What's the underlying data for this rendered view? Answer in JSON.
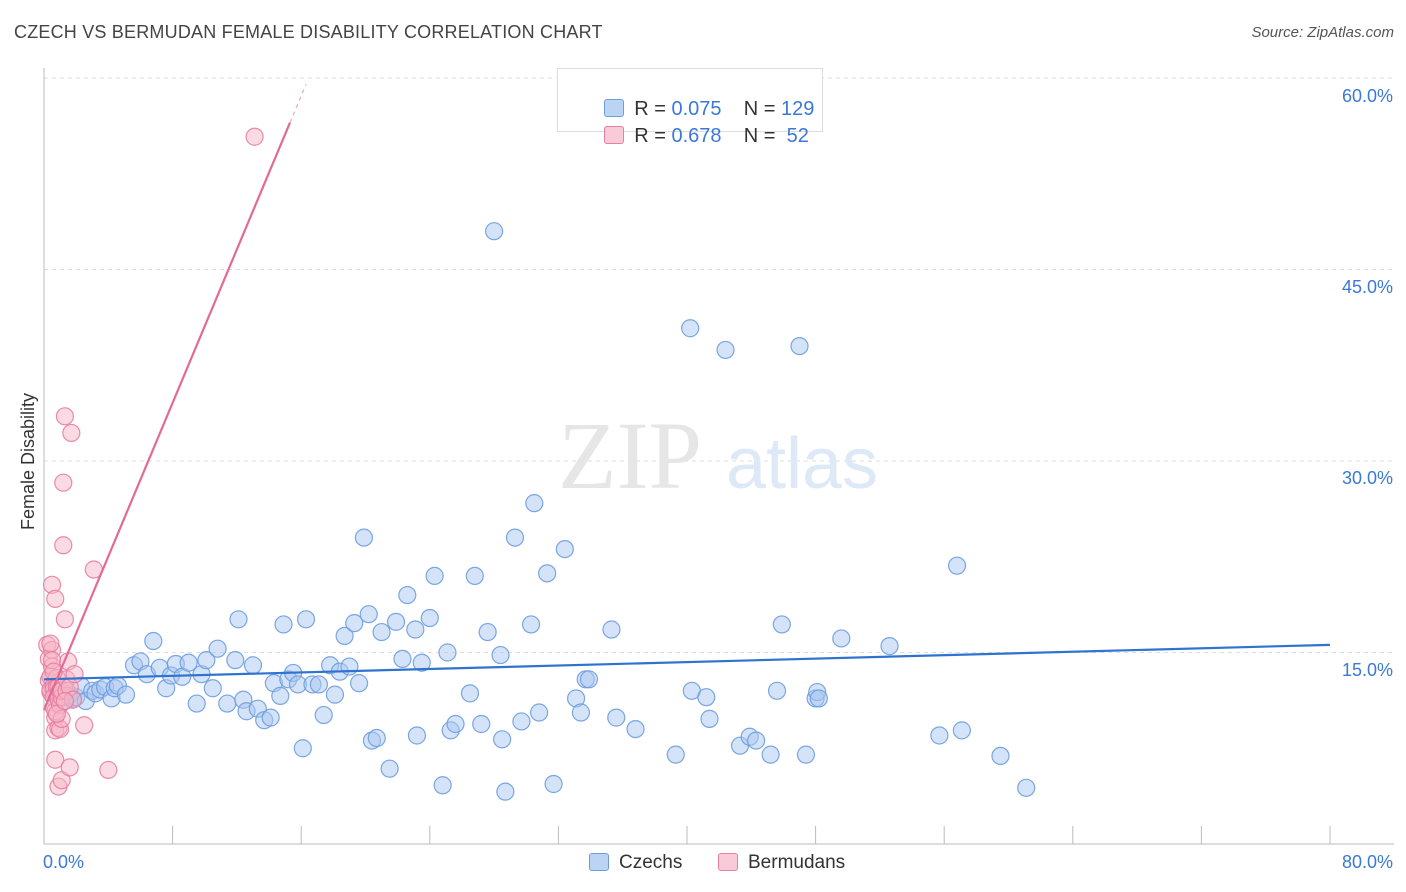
{
  "header": {
    "title": "CZECH VS BERMUDAN FEMALE DISABILITY CORRELATION CHART",
    "source": "Source: ZipAtlas.com"
  },
  "watermark": {
    "zip": "ZIP",
    "atlas": "atlas"
  },
  "legend": {
    "rows": [
      {
        "r_label": "R = ",
        "r_value": "0.075",
        "n_label": "N = ",
        "n_value": "129"
      },
      {
        "r_label": "R = ",
        "r_value": "0.678",
        "n_label": "N = ",
        "n_value": " 52"
      }
    ]
  },
  "bottom_legend": {
    "czechs": "Czechs",
    "bermudans": "Bermudans"
  },
  "colors": {
    "czech_fill": "#a9c8f0",
    "czech_stroke": "#6d9de0",
    "czech_line": "#2f73d0",
    "bermudan_fill": "#f6b6c8",
    "bermudan_stroke": "#e87fa0",
    "bermudan_line": "#e26b95",
    "tick_label": "#3b78d8"
  },
  "chart_data": {
    "type": "scatter",
    "title": "CZECH VS BERMUDAN FEMALE DISABILITY CORRELATION CHART",
    "xlabel": "",
    "ylabel": "Female Disability",
    "xlim": [
      0,
      80
    ],
    "ylim": [
      0,
      60
    ],
    "x_tick_labels": [
      "0.0%",
      "80.0%"
    ],
    "y_ticks": [
      15,
      30,
      45,
      60
    ],
    "y_tick_labels": [
      "15.0%",
      "30.0%",
      "45.0%",
      "60.0%"
    ],
    "grid": "horizontal dashed",
    "series": [
      {
        "name": "Czechs",
        "R": 0.075,
        "N": 129,
        "trend": {
          "x": [
            0.0,
            80.0
          ],
          "y": [
            12.9,
            15.6
          ]
        },
        "points": [
          [
            0.6,
            12.3
          ],
          [
            0.8,
            11.5
          ],
          [
            1.0,
            12.0
          ],
          [
            1.2,
            11.2
          ],
          [
            1.5,
            11.6
          ],
          [
            1.8,
            11.4
          ],
          [
            2.0,
            11.5
          ],
          [
            2.3,
            12.4
          ],
          [
            2.6,
            11.2
          ],
          [
            3.0,
            12.0
          ],
          [
            3.2,
            11.8
          ],
          [
            3.5,
            12.1
          ],
          [
            3.8,
            12.3
          ],
          [
            4.2,
            11.4
          ],
          [
            4.4,
            12.2
          ],
          [
            4.6,
            12.4
          ],
          [
            5.1,
            11.7
          ],
          [
            5.6,
            14.0
          ],
          [
            6.0,
            14.3
          ],
          [
            6.4,
            13.3
          ],
          [
            6.8,
            15.9
          ],
          [
            7.2,
            13.8
          ],
          [
            7.6,
            12.2
          ],
          [
            7.9,
            13.2
          ],
          [
            8.2,
            14.1
          ],
          [
            8.6,
            13.1
          ],
          [
            9.0,
            14.2
          ],
          [
            9.5,
            11.0
          ],
          [
            9.8,
            13.3
          ],
          [
            10.1,
            14.4
          ],
          [
            10.5,
            12.2
          ],
          [
            10.8,
            15.3
          ],
          [
            11.4,
            11.0
          ],
          [
            11.9,
            14.4
          ],
          [
            12.1,
            17.6
          ],
          [
            12.4,
            11.3
          ],
          [
            12.6,
            10.4
          ],
          [
            13.0,
            14.0
          ],
          [
            13.3,
            10.6
          ],
          [
            13.7,
            9.7
          ],
          [
            14.1,
            9.9
          ],
          [
            14.3,
            12.6
          ],
          [
            14.7,
            11.6
          ],
          [
            14.9,
            17.2
          ],
          [
            15.2,
            12.9
          ],
          [
            15.5,
            13.4
          ],
          [
            15.8,
            12.5
          ],
          [
            16.1,
            7.5
          ],
          [
            16.3,
            17.6
          ],
          [
            16.7,
            12.5
          ],
          [
            17.1,
            12.5
          ],
          [
            17.4,
            10.1
          ],
          [
            17.8,
            14.0
          ],
          [
            18.1,
            11.7
          ],
          [
            18.4,
            13.5
          ],
          [
            18.7,
            16.3
          ],
          [
            19.0,
            13.9
          ],
          [
            19.3,
            17.3
          ],
          [
            19.6,
            12.6
          ],
          [
            19.9,
            24.0
          ],
          [
            20.2,
            18.0
          ],
          [
            20.4,
            8.1
          ],
          [
            20.7,
            8.3
          ],
          [
            21.0,
            16.6
          ],
          [
            21.5,
            5.9
          ],
          [
            21.9,
            17.4
          ],
          [
            22.3,
            14.5
          ],
          [
            22.6,
            19.5
          ],
          [
            23.1,
            16.8
          ],
          [
            23.2,
            8.5
          ],
          [
            23.5,
            14.2
          ],
          [
            24.0,
            17.7
          ],
          [
            24.3,
            21.0
          ],
          [
            24.8,
            4.6
          ],
          [
            25.1,
            15.0
          ],
          [
            25.3,
            8.9
          ],
          [
            25.6,
            9.4
          ],
          [
            26.5,
            11.8
          ],
          [
            26.8,
            21.0
          ],
          [
            27.2,
            9.4
          ],
          [
            27.6,
            16.6
          ],
          [
            28.0,
            48.0
          ],
          [
            28.4,
            14.8
          ],
          [
            28.5,
            8.2
          ],
          [
            28.7,
            4.1
          ],
          [
            29.3,
            24.0
          ],
          [
            29.7,
            9.6
          ],
          [
            30.3,
            17.2
          ],
          [
            30.5,
            26.7
          ],
          [
            30.8,
            10.3
          ],
          [
            31.3,
            21.2
          ],
          [
            31.7,
            4.7
          ],
          [
            32.4,
            23.1
          ],
          [
            33.1,
            11.4
          ],
          [
            33.4,
            10.3
          ],
          [
            33.7,
            12.9
          ],
          [
            33.9,
            12.9
          ],
          [
            35.3,
            16.8
          ],
          [
            35.6,
            9.9
          ],
          [
            36.8,
            9.0
          ],
          [
            39.3,
            7.0
          ],
          [
            40.2,
            40.4
          ],
          [
            40.3,
            12.0
          ],
          [
            41.2,
            11.5
          ],
          [
            41.4,
            9.8
          ],
          [
            42.4,
            38.7
          ],
          [
            43.3,
            7.7
          ],
          [
            43.9,
            8.4
          ],
          [
            44.3,
            8.1
          ],
          [
            45.2,
            7.0
          ],
          [
            45.6,
            12.0
          ],
          [
            45.9,
            17.2
          ],
          [
            47.0,
            39.0
          ],
          [
            47.4,
            7.0
          ],
          [
            48.0,
            11.4
          ],
          [
            48.1,
            11.9
          ],
          [
            48.2,
            11.4
          ],
          [
            49.6,
            16.1
          ],
          [
            52.6,
            15.5
          ],
          [
            55.7,
            8.5
          ],
          [
            56.8,
            21.8
          ],
          [
            57.1,
            8.9
          ],
          [
            59.5,
            6.9
          ],
          [
            61.1,
            4.4
          ]
        ]
      },
      {
        "name": "Bermudans",
        "R": 0.678,
        "N": 52,
        "trend": {
          "x": [
            0.0,
            15.3
          ],
          "y": [
            10.5,
            56.5
          ]
        },
        "trend_dashed": {
          "x": [
            15.3,
            16.3
          ],
          "y": [
            56.5,
            59.5
          ]
        },
        "points": [
          [
            0.2,
            15.6
          ],
          [
            0.3,
            14.5
          ],
          [
            0.3,
            12.8
          ],
          [
            0.4,
            11.9
          ],
          [
            0.4,
            13.1
          ],
          [
            0.4,
            12.1
          ],
          [
            0.5,
            20.3
          ],
          [
            0.5,
            15.2
          ],
          [
            0.5,
            13.9
          ],
          [
            0.6,
            12.4
          ],
          [
            0.6,
            12.1
          ],
          [
            0.6,
            11.5
          ],
          [
            0.6,
            10.7
          ],
          [
            0.7,
            9.9
          ],
          [
            0.7,
            10.4
          ],
          [
            0.7,
            8.9
          ],
          [
            0.7,
            6.6
          ],
          [
            0.7,
            19.2
          ],
          [
            0.8,
            13.0
          ],
          [
            0.8,
            12.3
          ],
          [
            0.9,
            11.4
          ],
          [
            0.9,
            12.3
          ],
          [
            0.9,
            9.1
          ],
          [
            0.9,
            4.5
          ],
          [
            1.0,
            12.0
          ],
          [
            1.0,
            10.9
          ],
          [
            1.0,
            9.0
          ],
          [
            1.1,
            5.0
          ],
          [
            1.1,
            11.5
          ],
          [
            1.1,
            12.0
          ],
          [
            1.1,
            9.8
          ],
          [
            1.2,
            23.4
          ],
          [
            1.2,
            28.3
          ],
          [
            1.3,
            33.5
          ],
          [
            1.3,
            17.6
          ],
          [
            1.4,
            12.9
          ],
          [
            1.4,
            12.0
          ],
          [
            1.5,
            14.3
          ],
          [
            1.6,
            12.3
          ],
          [
            1.6,
            6.0
          ],
          [
            1.7,
            32.2
          ],
          [
            1.8,
            11.3
          ],
          [
            2.5,
            9.3
          ],
          [
            3.1,
            21.5
          ],
          [
            4.0,
            5.8
          ],
          [
            13.1,
            55.4
          ],
          [
            0.4,
            15.7
          ],
          [
            0.5,
            14.4
          ],
          [
            0.8,
            10.2
          ],
          [
            1.3,
            11.2
          ],
          [
            1.9,
            13.3
          ],
          [
            0.6,
            13.5
          ]
        ]
      }
    ]
  }
}
